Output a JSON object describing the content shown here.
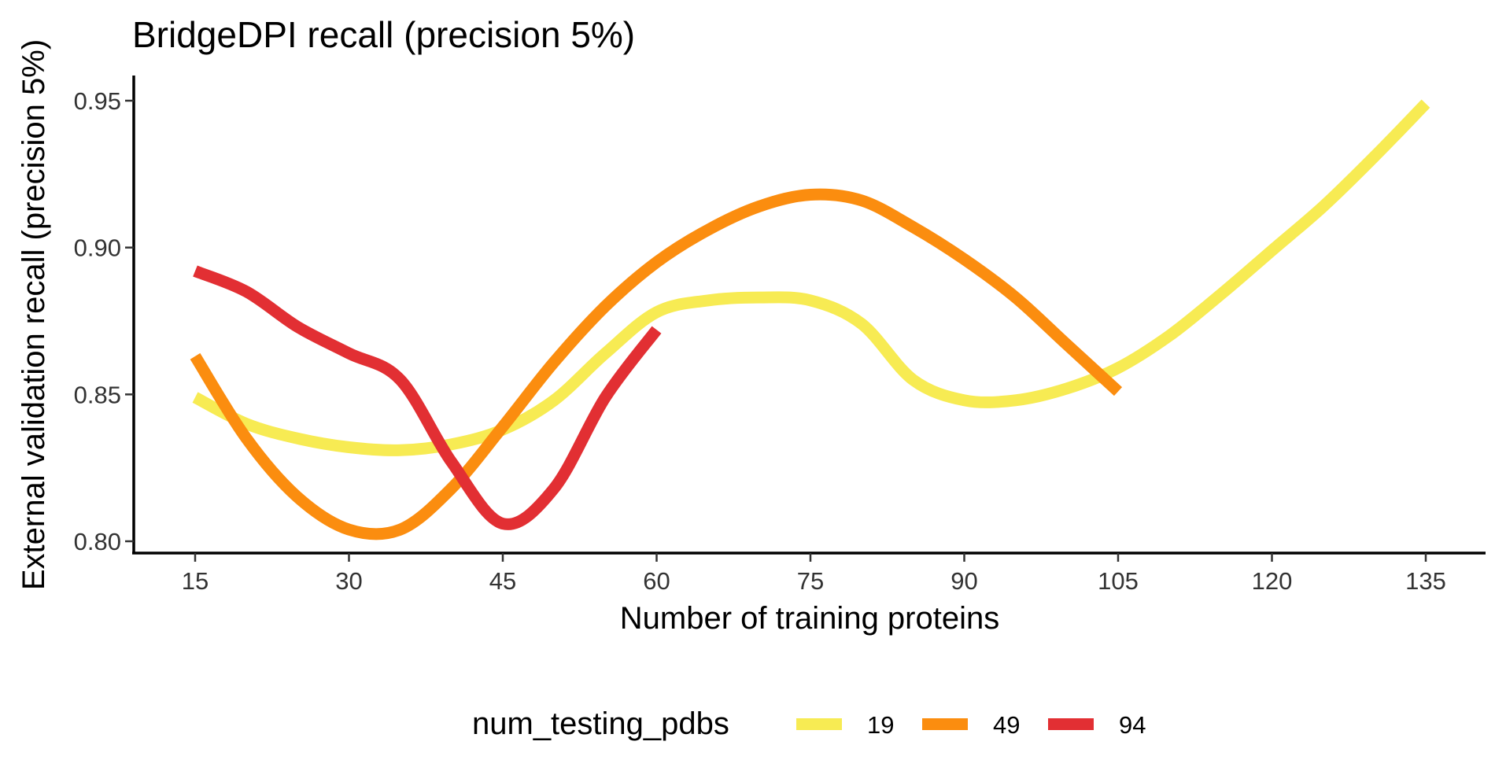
{
  "chart_data": {
    "type": "line",
    "title": "BridgeDPI recall (precision 5%)",
    "xlabel": "Number of training proteins",
    "ylabel": "External validation recall (precision 5%)",
    "xlim": [
      9,
      141
    ],
    "ylim": [
      0.795,
      0.96
    ],
    "x_ticks": [
      15,
      30,
      45,
      60,
      75,
      90,
      105,
      120,
      135
    ],
    "x_tick_labels": [
      "15",
      "30",
      "45",
      "60",
      "75",
      "90",
      "105",
      "120",
      "135"
    ],
    "y_ticks": [
      0.8,
      0.85,
      0.9,
      0.95
    ],
    "y_tick_labels": [
      "0.80",
      "0.85",
      "0.90",
      "0.95"
    ],
    "grid": false,
    "legend": {
      "title": "num_testing_pdbs",
      "position": "bottom"
    },
    "series": [
      {
        "name": "19",
        "color": "#F7EB53",
        "x": [
          15,
          20,
          25,
          30,
          35,
          40,
          45,
          50,
          55,
          60,
          65,
          70,
          75,
          80,
          85,
          90,
          95,
          100,
          105,
          110,
          115,
          120,
          125,
          130,
          135
        ],
        "y": [
          0.849,
          0.84,
          0.835,
          0.832,
          0.831,
          0.833,
          0.838,
          0.848,
          0.864,
          0.878,
          0.882,
          0.883,
          0.882,
          0.874,
          0.855,
          0.848,
          0.848,
          0.852,
          0.859,
          0.87,
          0.884,
          0.899,
          0.914,
          0.931,
          0.949
        ]
      },
      {
        "name": "49",
        "color": "#FB8D0F",
        "x": [
          15,
          20,
          25,
          30,
          35,
          40,
          45,
          50,
          55,
          60,
          65,
          70,
          75,
          80,
          85,
          90,
          95,
          100,
          105
        ],
        "y": [
          0.863,
          0.835,
          0.815,
          0.804,
          0.804,
          0.818,
          0.839,
          0.861,
          0.88,
          0.895,
          0.906,
          0.914,
          0.918,
          0.916,
          0.907,
          0.896,
          0.883,
          0.867,
          0.851
        ]
      },
      {
        "name": "94",
        "color": "#E22F33",
        "x": [
          15,
          20,
          25,
          30,
          35,
          40,
          45,
          50,
          55,
          60
        ],
        "y": [
          0.892,
          0.885,
          0.873,
          0.864,
          0.855,
          0.827,
          0.806,
          0.818,
          0.849,
          0.872
        ]
      }
    ]
  }
}
